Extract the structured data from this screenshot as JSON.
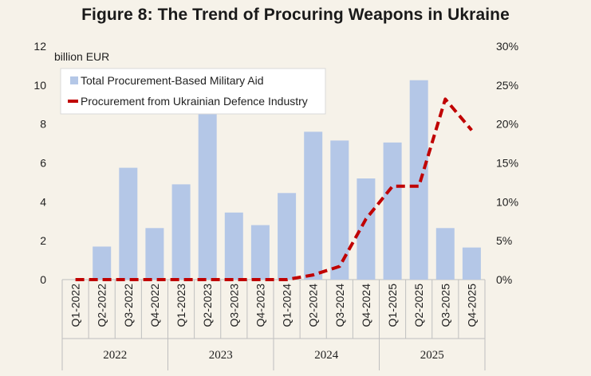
{
  "figure_title": "Figure 8: The Trend of Procuring Weapons in Ukraine",
  "colors": {
    "bar": "#b4c7e7",
    "line": "#c00000",
    "axis": "#bfbfbf",
    "background": "#f6f2e9"
  },
  "chart_data": {
    "type": "bar",
    "title": "Figure 8: The Trend of Procuring Weapons in Ukraine",
    "ylabel": "billion EUR",
    "ylim": [
      0,
      12
    ],
    "y_ticks": [
      0,
      2,
      4,
      6,
      8,
      10,
      12
    ],
    "y2lim": [
      0,
      30
    ],
    "y2_ticks": [
      "0%",
      "5%",
      "10%",
      "15%",
      "20%",
      "25%",
      "30%"
    ],
    "categories": [
      "Q1-2022",
      "Q2-2022",
      "Q3-2022",
      "Q4-2022",
      "Q1-2023",
      "Q2-2023",
      "Q3-2023",
      "Q4-2023",
      "Q1-2024",
      "Q2-2024",
      "Q3-2024",
      "Q4-2024",
      "Q1-2025",
      "Q2-2025",
      "Q3-2025",
      "Q4-2025"
    ],
    "year_groups": [
      {
        "label": "2022",
        "span": 4
      },
      {
        "label": "2023",
        "span": 4
      },
      {
        "label": "2024",
        "span": 4
      },
      {
        "label": "2025",
        "span": 4
      }
    ],
    "series": [
      {
        "name": "Total Procurement-Based Military Aid",
        "kind": "bar",
        "axis": "left",
        "values": [
          0,
          1.7,
          5.75,
          2.65,
          4.9,
          8.5,
          3.45,
          2.8,
          4.45,
          7.6,
          7.15,
          5.2,
          7.05,
          10.25,
          2.65,
          1.65
        ]
      },
      {
        "name": "Procurement from Ukrainian Defence Industry",
        "kind": "line",
        "style": "dashed",
        "axis": "right",
        "unit": "%",
        "values": [
          0,
          0,
          0,
          0,
          0,
          0,
          0,
          0,
          0,
          0.6,
          1.7,
          7.8,
          12.0,
          12.0,
          23.2,
          19.2
        ]
      }
    ],
    "legend": [
      "Total Procurement-Based Military Aid",
      "Procurement from Ukrainian Defence Industry"
    ],
    "legend_position": "top-left"
  }
}
